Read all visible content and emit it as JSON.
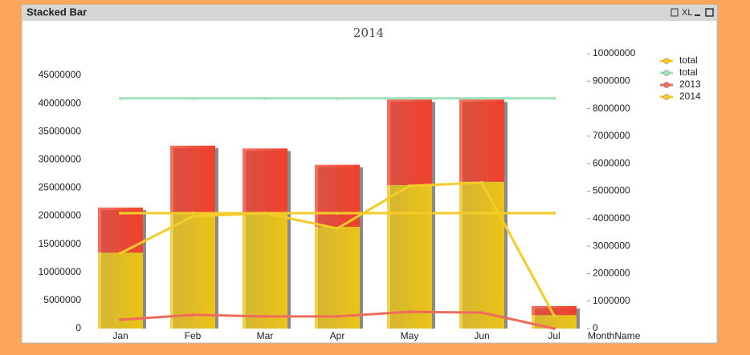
{
  "window": {
    "title": "Stacked Bar",
    "xl": "XL"
  },
  "chart_data": {
    "type": "bar",
    "title": "2014",
    "x_label": "MonthName",
    "categories": [
      "Jan",
      "Feb",
      "Mar",
      "Apr",
      "May",
      "Jun",
      "Jul"
    ],
    "ylim": [
      0,
      45000000
    ],
    "yticks": [
      0,
      5000000,
      10000000,
      15000000,
      20000000,
      25000000,
      30000000,
      35000000,
      40000000,
      45000000
    ],
    "y2lim": [
      0,
      10000000
    ],
    "y2ticks": [
      0,
      1000000,
      2000000,
      3000000,
      4000000,
      5000000,
      6000000,
      7000000,
      8000000,
      9000000,
      10000000
    ],
    "stacked": true,
    "legend": "top-right",
    "series": [
      {
        "type": "bar",
        "color": "#ecc316",
        "values": [
          13500000,
          20700000,
          20700000,
          18100000,
          25500000,
          26100000,
          2400000
        ]
      },
      {
        "type": "bar",
        "color": "#f2402c",
        "values": [
          8000000,
          11800000,
          11300000,
          11000000,
          15200000,
          14600000,
          1600000
        ]
      },
      {
        "type": "line",
        "name": "total",
        "color": "#f4cc2a",
        "values": [
          20500000,
          20500000,
          20500000,
          20500000,
          20500000,
          20500000,
          20500000
        ]
      },
      {
        "type": "line",
        "name": "total",
        "color": "#9fe0b8",
        "values": [
          40900000,
          40900000,
          40900000,
          40900000,
          40900000,
          40900000,
          40900000
        ]
      },
      {
        "type": "line",
        "name": "2013",
        "color": "#ef6c5c",
        "axis": "y2",
        "values": [
          320000,
          500000,
          440000,
          440000,
          610000,
          580000,
          0
        ]
      },
      {
        "type": "line",
        "name": "2014",
        "color": "#f4cc2a",
        "axis": "y2",
        "values": [
          2740000,
          4080000,
          4200000,
          3640000,
          5190000,
          5310000,
          470000
        ]
      }
    ]
  }
}
